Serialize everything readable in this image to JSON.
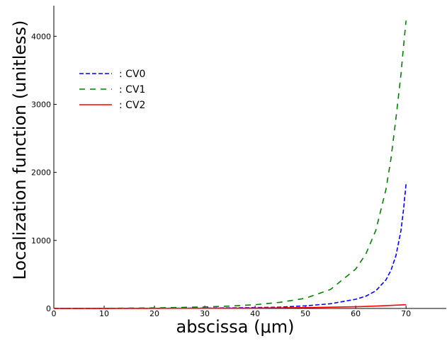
{
  "chart_data": {
    "type": "line",
    "xlabel": "abscissa (μm)",
    "ylabel": "Localization function (unitless)",
    "xlim": [
      0,
      78
    ],
    "ylim": [
      0,
      4450
    ],
    "xticks": [
      0,
      10,
      20,
      30,
      40,
      50,
      60,
      70
    ],
    "yticks": [
      0,
      1000,
      2000,
      3000,
      4000
    ],
    "grid": false,
    "legend_position": "upper-left",
    "series": [
      {
        "name": ": CV0",
        "color": "#0000ff",
        "dash": "dashed",
        "x": [
          0,
          10,
          20,
          30,
          40,
          45,
          50,
          55,
          60,
          62,
          64,
          66,
          67,
          68,
          69,
          69.5,
          70
        ],
        "y": [
          0,
          1,
          2,
          5,
          12,
          20,
          38,
          70,
          135,
          180,
          260,
          420,
          560,
          780,
          1150,
          1450,
          1830
        ]
      },
      {
        "name": ": CV1",
        "color": "#008000",
        "dash": "dashed-long",
        "x": [
          0,
          10,
          20,
          30,
          35,
          40,
          45,
          50,
          55,
          60,
          62,
          64,
          66,
          67,
          68,
          69,
          69.5,
          70
        ],
        "y": [
          0,
          2,
          8,
          22,
          35,
          55,
          90,
          150,
          280,
          580,
          800,
          1150,
          1750,
          2200,
          2800,
          3450,
          3850,
          4230
        ]
      },
      {
        "name": ": CV2",
        "color": "#ff0000",
        "dash": "solid",
        "x": [
          0,
          10,
          20,
          30,
          40,
          50,
          60,
          65,
          70
        ],
        "y": [
          0,
          1,
          2,
          3,
          6,
          12,
          25,
          38,
          55
        ]
      }
    ]
  }
}
